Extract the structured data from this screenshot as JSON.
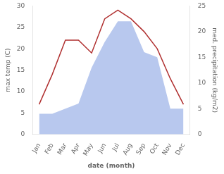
{
  "chart_data": {
    "type": "line",
    "categories": [
      "Jan",
      "Feb",
      "Mar",
      "Apr",
      "May",
      "Jun",
      "Jul",
      "Aug",
      "Sep",
      "Oct",
      "Nov",
      "Dec"
    ],
    "series": [
      {
        "type": "area",
        "color": "#b8c8ee",
        "axis": "y2",
        "values": [
          4,
          4,
          5,
          6,
          13,
          18,
          22,
          22,
          16,
          15,
          5,
          5
        ]
      },
      {
        "type": "line",
        "color": "#b03030",
        "values": [
          7,
          14,
          22,
          22,
          19,
          27,
          29,
          27,
          24,
          20,
          13,
          7
        ]
      }
    ],
    "xlabel": "date (month)",
    "ylabel": "max temp (C)",
    "y2label": "med. precipitation (kg/m2)",
    "ylim": [
      0,
      30
    ],
    "yticks": [
      0,
      5,
      10,
      15,
      20,
      25,
      30
    ],
    "y2lim": [
      0,
      25
    ],
    "y2ticks": [
      0,
      5,
      10,
      15,
      20,
      25
    ],
    "grid": false
  }
}
